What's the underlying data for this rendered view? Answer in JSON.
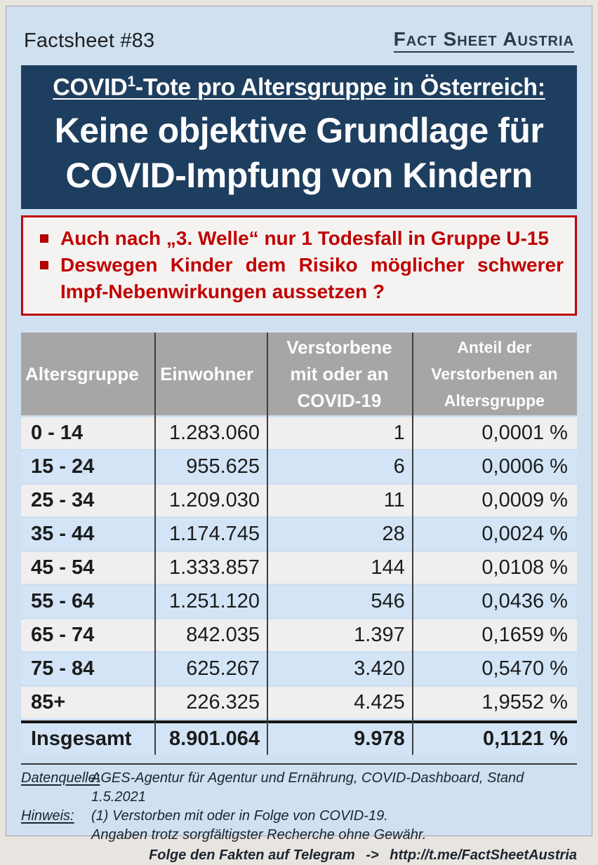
{
  "colors": {
    "page_bg": "#cfe0f1",
    "outer_bg": "#e8e4e0",
    "banner_bg": "#1e3e5f",
    "accent_red": "#c00000",
    "table_header_gray": "#a6a6a6",
    "row_white": "#f0efee",
    "row_blue": "#d2e4f5"
  },
  "header": {
    "issue_label": "Factsheet #83",
    "brand_label": "Fact Sheet Austria"
  },
  "banner": {
    "subtitle_prefix": "COVID",
    "subtitle_sup": "1",
    "subtitle_rest": "-Tote pro Altersgruppe in Österreich:",
    "title_line1": "Keine objektive Grundlage für",
    "title_line2": "COVID-Impfung von Kindern"
  },
  "alert": {
    "bullet1": "Auch nach „3. Welle“ nur 1 Todesfall in Gruppe U-15",
    "bullet2": "Deswegen Kinder dem Risiko möglicher schwerer Impf-Nebenwirkungen aussetzen ?"
  },
  "table": {
    "columns": [
      "Altersgruppe",
      "Einwohner",
      "Verstorbene mit oder an COVID-19",
      "Anteil der Verstorbenen an Altersgruppe"
    ],
    "rows": [
      {
        "age": "0 - 14",
        "population": "1.283.060",
        "deaths": "1",
        "share": "0,0001 %"
      },
      {
        "age": "15 - 24",
        "population": "955.625",
        "deaths": "6",
        "share": "0,0006 %"
      },
      {
        "age": "25 - 34",
        "population": "1.209.030",
        "deaths": "11",
        "share": "0,0009 %"
      },
      {
        "age": "35 - 44",
        "population": "1.174.745",
        "deaths": "28",
        "share": "0,0024 %"
      },
      {
        "age": "45 - 54",
        "population": "1.333.857",
        "deaths": "144",
        "share": "0,0108 %"
      },
      {
        "age": "55 - 64",
        "population": "1.251.120",
        "deaths": "546",
        "share": "0,0436 %"
      },
      {
        "age": "65 - 74",
        "population": "842.035",
        "deaths": "1.397",
        "share": "0,1659 %"
      },
      {
        "age": "75 - 84",
        "population": "625.267",
        "deaths": "3.420",
        "share": "0,5470 %"
      },
      {
        "age": "85+",
        "population": "226.325",
        "deaths": "4.425",
        "share": "1,9552 %"
      }
    ],
    "total": {
      "age": "Insgesamt",
      "population": "8.901.064",
      "deaths": "9.978",
      "share": "0,1121 %"
    }
  },
  "footer": {
    "source_label": "Datenquelle:",
    "source_text": "AGES-Agentur für Agentur und Ernährung, COVID-Dashboard, Stand 1.5.2021",
    "note_label": "Hinweis:",
    "note_text": "(1) Verstorben mit oder in Folge von COVID-19.",
    "disclaimer_text": "Angaben trotz sorgfältigster Recherche ohne Gewähr.",
    "telegram_label": "Folge den Fakten auf Telegram",
    "telegram_arrow": "->",
    "telegram_url": "http://t.me/FactSheetAustria"
  }
}
